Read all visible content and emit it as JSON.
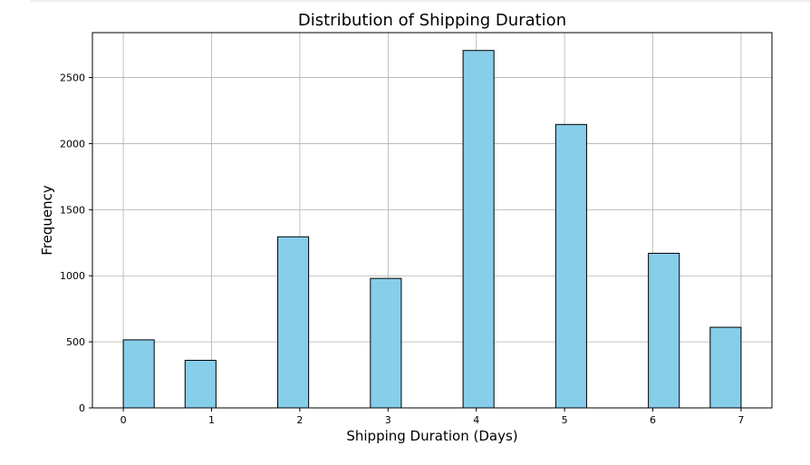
{
  "chart_data": {
    "type": "bar",
    "title": "Distribution of Shipping Duration",
    "xlabel": "Shipping Duration (Days)",
    "ylabel": "Frequency",
    "bar_color": "#87ceeb",
    "edge_color": "#000000",
    "grid": true,
    "xlim": [
      -0.35,
      7.35
    ],
    "ylim": [
      0,
      2840
    ],
    "x_ticks": [
      0,
      1,
      2,
      3,
      4,
      5,
      6,
      7
    ],
    "y_ticks": [
      0,
      500,
      1000,
      1500,
      2000,
      2500
    ],
    "bars": [
      {
        "x_start": 0.0,
        "x_end": 0.35,
        "value": 515
      },
      {
        "x_start": 0.7,
        "x_end": 1.05,
        "value": 360
      },
      {
        "x_start": 1.75,
        "x_end": 2.1,
        "value": 1295
      },
      {
        "x_start": 2.8,
        "x_end": 3.15,
        "value": 980
      },
      {
        "x_start": 3.85,
        "x_end": 4.2,
        "value": 2705
      },
      {
        "x_start": 4.9,
        "x_end": 5.25,
        "value": 2145
      },
      {
        "x_start": 5.95,
        "x_end": 6.3,
        "value": 1170
      },
      {
        "x_start": 6.65,
        "x_end": 7.0,
        "value": 610
      }
    ]
  }
}
